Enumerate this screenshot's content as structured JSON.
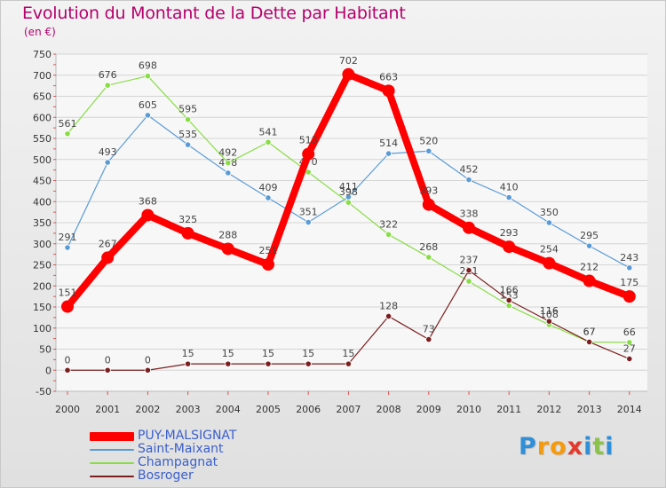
{
  "header": {
    "title": "Evolution du Montant de la Dette par Habitant",
    "unit": "(en €)"
  },
  "colors": {
    "PUY-MALSIGNAT": "#ff0000",
    "Saint-Maixant": "#5b9bd5",
    "Champagnat": "#88dd44",
    "Bosroger": "#7a1f1f",
    "title": "#b5006b",
    "legend_text": "#3a5fcd"
  },
  "logo": {
    "letters": [
      "P",
      "r",
      "o",
      "x",
      "i",
      "t",
      "i"
    ],
    "colors": [
      "#2f8fd8",
      "#f59a0c",
      "#f59a0c",
      "#e23b2d",
      "#2f8fd8",
      "#8bc34a",
      "#2f8fd8"
    ]
  },
  "chart_data": {
    "type": "line",
    "x": [
      2000,
      2001,
      2002,
      2003,
      2004,
      2005,
      2006,
      2007,
      2008,
      2009,
      2010,
      2011,
      2012,
      2013,
      2014
    ],
    "ylim": [
      -50,
      750
    ],
    "yticks": [
      -50,
      0,
      50,
      100,
      150,
      200,
      250,
      300,
      350,
      400,
      450,
      500,
      550,
      600,
      650,
      700,
      750
    ],
    "grid": "horizontal",
    "legend_position": "bottom-left",
    "series": [
      {
        "name": "Saint-Maixant",
        "values": [
          291,
          493,
          605,
          535,
          468,
          409,
          351,
          411,
          514,
          520,
          452,
          410,
          350,
          295,
          243
        ]
      },
      {
        "name": "Champagnat",
        "values": [
          561,
          676,
          698,
          595,
          492,
          541,
          470,
          398,
          322,
          268,
          211,
          153,
          108,
          67,
          66
        ]
      },
      {
        "name": "Bosroger",
        "values": [
          0,
          0,
          0,
          15,
          15,
          15,
          15,
          15,
          128,
          73,
          237,
          166,
          116,
          67,
          27
        ]
      },
      {
        "name": "PUY-MALSIGNAT",
        "values": [
          151,
          267,
          368,
          325,
          288,
          251,
          513,
          702,
          663,
          393,
          338,
          293,
          254,
          212,
          175
        ]
      }
    ],
    "legend": [
      "PUY-MALSIGNAT",
      "Saint-Maixant",
      "Champagnat",
      "Bosroger"
    ]
  }
}
